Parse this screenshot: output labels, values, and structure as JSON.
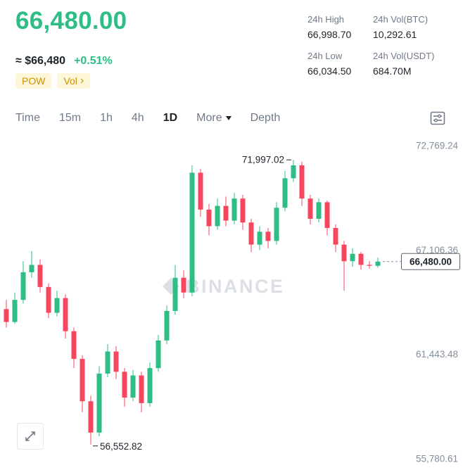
{
  "header": {
    "price": "66,480.00",
    "approx_price": "≈ $66,480",
    "change_pct": "+0.51%",
    "tag_pow": "POW",
    "tag_vol": "Vol",
    "tag_vol_arrow": "›",
    "stats": [
      {
        "label": "24h High",
        "value": "66,998.70"
      },
      {
        "label": "24h Vol(BTC)",
        "value": "10,292.61"
      },
      {
        "label": "24h Low",
        "value": "66,034.50"
      },
      {
        "label": "24h Vol(USDT)",
        "value": "684.70M"
      }
    ]
  },
  "toolbar": {
    "tabs": [
      {
        "label": "Time"
      },
      {
        "label": "15m"
      },
      {
        "label": "1h"
      },
      {
        "label": "4h"
      },
      {
        "label": "1D"
      },
      {
        "label": "More"
      },
      {
        "label": "Depth"
      }
    ],
    "active_tab": "1D"
  },
  "chart_data": {
    "type": "candlestick",
    "interval": "1D",
    "watermark": "BINANCE",
    "colors": {
      "up": "#2EBD85",
      "down": "#F6465D",
      "axis_text": "#848E9C",
      "annotation_text": "#1E2329",
      "watermark": "#DCE0E5"
    },
    "y_axis_labels": [
      "72,769.24",
      "67,106.36",
      "61,443.48",
      "55,780.61"
    ],
    "y_axis_values": [
      72769.24,
      67106.36,
      61443.48,
      55780.61
    ],
    "annotations": {
      "peak": "71,997.02",
      "trough": "56,552.82",
      "last_price": "66,480.00"
    },
    "peak_index": 34,
    "trough_index": 10,
    "candles": [
      [
        63900,
        64400,
        62900,
        63200
      ],
      [
        63200,
        64800,
        63100,
        64400
      ],
      [
        64400,
        66500,
        64200,
        65900
      ],
      [
        65900,
        67050,
        65600,
        66300
      ],
      [
        66300,
        66600,
        64800,
        65100
      ],
      [
        65100,
        65300,
        63400,
        63700
      ],
      [
        63700,
        64900,
        63500,
        64500
      ],
      [
        64500,
        64700,
        62300,
        62700
      ],
      [
        62700,
        62900,
        60700,
        61200
      ],
      [
        61200,
        61400,
        58300,
        58900
      ],
      [
        58900,
        59200,
        56552.82,
        57200
      ],
      [
        57200,
        60800,
        57000,
        60400
      ],
      [
        60400,
        62000,
        60200,
        61600
      ],
      [
        61600,
        61900,
        60100,
        60500
      ],
      [
        60500,
        60700,
        58600,
        59100
      ],
      [
        59100,
        60600,
        58900,
        60300
      ],
      [
        60300,
        60500,
        58300,
        58800
      ],
      [
        58800,
        61000,
        58600,
        60700
      ],
      [
        60700,
        62500,
        60500,
        62200
      ],
      [
        62200,
        64100,
        62000,
        63800
      ],
      [
        63800,
        66300,
        63600,
        65600
      ],
      [
        65600,
        66000,
        64500,
        64800
      ],
      [
        64800,
        71700,
        64600,
        71300
      ],
      [
        71300,
        71500,
        68900,
        69300
      ],
      [
        69300,
        69600,
        67900,
        68400
      ],
      [
        68400,
        69900,
        68200,
        69500
      ],
      [
        69500,
        70000,
        68400,
        68700
      ],
      [
        68700,
        70200,
        68500,
        69900
      ],
      [
        69900,
        70100,
        68200,
        68600
      ],
      [
        68600,
        68800,
        67000,
        67400
      ],
      [
        67400,
        68400,
        67100,
        68100
      ],
      [
        68100,
        68300,
        67200,
        67600
      ],
      [
        67600,
        69700,
        67400,
        69400
      ],
      [
        69400,
        71400,
        69200,
        71000
      ],
      [
        71000,
        71997.02,
        70800,
        71700
      ],
      [
        71700,
        71900,
        69500,
        69900
      ],
      [
        69900,
        70100,
        68500,
        68800
      ],
      [
        68800,
        69900,
        68600,
        69700
      ],
      [
        69700,
        69800,
        67900,
        68300
      ],
      [
        68300,
        68500,
        67000,
        67400
      ],
      [
        67400,
        67600,
        64900,
        66500
      ],
      [
        66500,
        67200,
        66200,
        66900
      ],
      [
        66900,
        67000,
        66034.5,
        66300
      ],
      [
        66300,
        66500,
        66100,
        66250
      ],
      [
        66250,
        66700,
        66150,
        66480
      ]
    ]
  }
}
